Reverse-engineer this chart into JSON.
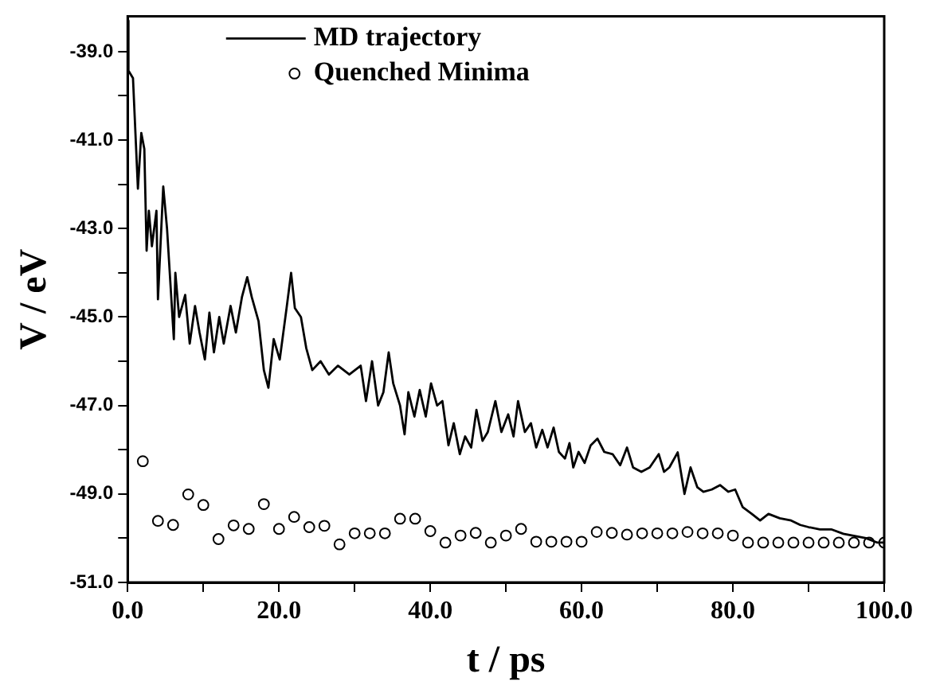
{
  "chart_data": {
    "type": "line",
    "xlabel": "t / ps",
    "ylabel": "V / eV",
    "xlim": [
      0,
      100
    ],
    "ylim": [
      -51,
      -38.2
    ],
    "xticks": [
      {
        "value": 0,
        "label": "0.0"
      },
      {
        "value": 10,
        "label": null
      },
      {
        "value": 20,
        "label": "20.0"
      },
      {
        "value": 30,
        "label": null
      },
      {
        "value": 40,
        "label": "40.0"
      },
      {
        "value": 50,
        "label": null
      },
      {
        "value": 60,
        "label": "60.0"
      },
      {
        "value": 70,
        "label": null
      },
      {
        "value": 80,
        "label": "80.0"
      },
      {
        "value": 90,
        "label": null
      },
      {
        "value": 100,
        "label": "100.0"
      }
    ],
    "yticks": [
      {
        "value": -51,
        "label": "-51.0"
      },
      {
        "value": -50,
        "label": null
      },
      {
        "value": -49,
        "label": "-49.0"
      },
      {
        "value": -48,
        "label": null
      },
      {
        "value": -47,
        "label": "-47.0"
      },
      {
        "value": -46,
        "label": null
      },
      {
        "value": -45,
        "label": "-45.0"
      },
      {
        "value": -44,
        "label": null
      },
      {
        "value": -43,
        "label": "-43.0"
      },
      {
        "value": -42,
        "label": null
      },
      {
        "value": -41,
        "label": "-41.0"
      },
      {
        "value": -40,
        "label": null
      },
      {
        "value": -39,
        "label": "-39.0"
      }
    ],
    "grid": false,
    "legend": "top left",
    "series": [
      {
        "name": "MD trajectory",
        "type": "line",
        "color": "#000000",
        "marker": "none",
        "line_style": "solid",
        "x": [
          0,
          0.1,
          0.7,
          1.35,
          1.8,
          2.2,
          2.5,
          2.8,
          3.2,
          3.8,
          4.0,
          4.7,
          5.2,
          6.1,
          6.3,
          6.8,
          7.6,
          8.2,
          8.9,
          9.5,
          10.2,
          10.8,
          11.4,
          12.1,
          12.7,
          13.6,
          14.3,
          15.1,
          15.8,
          16.4,
          17.3,
          18.0,
          18.6,
          19.3,
          20.1,
          21.0,
          21.6,
          22.1,
          22.9,
          23.6,
          24.4,
          25.5,
          26.6,
          27.8,
          29.3,
          30.8,
          31.5,
          32.3,
          33.1,
          33.8,
          34.5,
          35.1,
          36.0,
          36.6,
          37.1,
          37.9,
          38.6,
          39.4,
          40.1,
          40.9,
          41.6,
          42.4,
          43.1,
          43.9,
          44.6,
          45.4,
          46.1,
          46.9,
          47.6,
          48.6,
          49.4,
          50.3,
          51.0,
          51.6,
          52.5,
          53.3,
          54.0,
          54.8,
          55.5,
          56.3,
          57.0,
          57.8,
          58.4,
          58.9,
          59.6,
          60.4,
          61.2,
          62.1,
          63.0,
          64.1,
          65.1,
          66.0,
          66.8,
          67.9,
          69.0,
          70.2,
          70.9,
          71.6,
          72.7,
          73.6,
          74.4,
          75.3,
          76.1,
          77.2,
          78.3,
          79.4,
          80.3,
          81.3,
          82.5,
          83.6,
          84.7,
          86.2,
          87.7,
          88.9,
          90.0,
          91.5,
          93.0,
          94.6,
          96.1,
          97.6,
          99.1,
          100
        ],
        "values": [
          -38.3,
          -39.43,
          -39.6,
          -42.1,
          -40.84,
          -41.2,
          -43.5,
          -42.6,
          -43.4,
          -42.6,
          -44.6,
          -42.05,
          -43.0,
          -45.5,
          -44.0,
          -45.0,
          -44.5,
          -45.6,
          -44.75,
          -45.35,
          -45.96,
          -44.9,
          -45.8,
          -45.0,
          -45.6,
          -44.75,
          -45.35,
          -44.55,
          -44.1,
          -44.55,
          -45.1,
          -46.2,
          -46.6,
          -45.5,
          -45.96,
          -44.8,
          -44.0,
          -44.8,
          -45.0,
          -45.7,
          -46.2,
          -46.0,
          -46.3,
          -46.1,
          -46.3,
          -46.1,
          -46.9,
          -46.0,
          -47.0,
          -46.7,
          -45.8,
          -46.5,
          -47.0,
          -47.65,
          -46.7,
          -47.25,
          -46.65,
          -47.25,
          -46.5,
          -47.0,
          -46.9,
          -47.9,
          -47.4,
          -48.1,
          -47.7,
          -47.95,
          -47.1,
          -47.8,
          -47.6,
          -46.9,
          -47.6,
          -47.2,
          -47.7,
          -46.9,
          -47.6,
          -47.4,
          -47.95,
          -47.55,
          -47.95,
          -47.5,
          -48.05,
          -48.2,
          -47.85,
          -48.4,
          -48.05,
          -48.3,
          -47.9,
          -47.75,
          -48.05,
          -48.1,
          -48.35,
          -47.95,
          -48.4,
          -48.5,
          -48.4,
          -48.1,
          -48.5,
          -48.4,
          -48.06,
          -49.0,
          -48.4,
          -48.85,
          -48.95,
          -48.9,
          -48.8,
          -48.95,
          -48.9,
          -49.3,
          -49.45,
          -49.6,
          -49.45,
          -49.55,
          -49.6,
          -49.7,
          -49.75,
          -49.8,
          -49.8,
          -49.9,
          -49.95,
          -50.0,
          -50.1,
          -50.1
        ]
      },
      {
        "name": "Quenched Minima",
        "type": "scatter",
        "color": "#000000",
        "marker": "circle",
        "x": [
          2,
          4,
          6,
          8,
          10,
          12,
          14,
          16,
          18,
          20,
          22,
          24,
          26,
          28,
          30,
          32,
          34,
          36,
          38,
          40,
          42,
          44,
          46,
          48,
          50,
          52,
          54,
          56,
          58,
          60,
          62,
          64,
          66,
          68,
          70,
          72,
          74,
          76,
          78,
          80,
          82,
          84,
          86,
          88,
          90,
          92,
          94,
          96,
          98,
          100
        ],
        "values": [
          -48.26,
          -49.61,
          -49.7,
          -49.01,
          -49.25,
          -50.02,
          -49.71,
          -49.79,
          -49.23,
          -49.79,
          -49.52,
          -49.75,
          -49.72,
          -50.14,
          -49.89,
          -49.89,
          -49.89,
          -49.56,
          -49.56,
          -49.84,
          -50.1,
          -49.94,
          -49.88,
          -50.1,
          -49.94,
          -49.79,
          -50.08,
          -50.08,
          -50.08,
          -50.08,
          -49.86,
          -49.88,
          -49.92,
          -49.89,
          -49.89,
          -49.89,
          -49.86,
          -49.89,
          -49.89,
          -49.94,
          -50.1,
          -50.1,
          -50.1,
          -50.1,
          -50.1,
          -50.1,
          -50.1,
          -50.1,
          -50.1,
          -50.1
        ]
      }
    ]
  }
}
